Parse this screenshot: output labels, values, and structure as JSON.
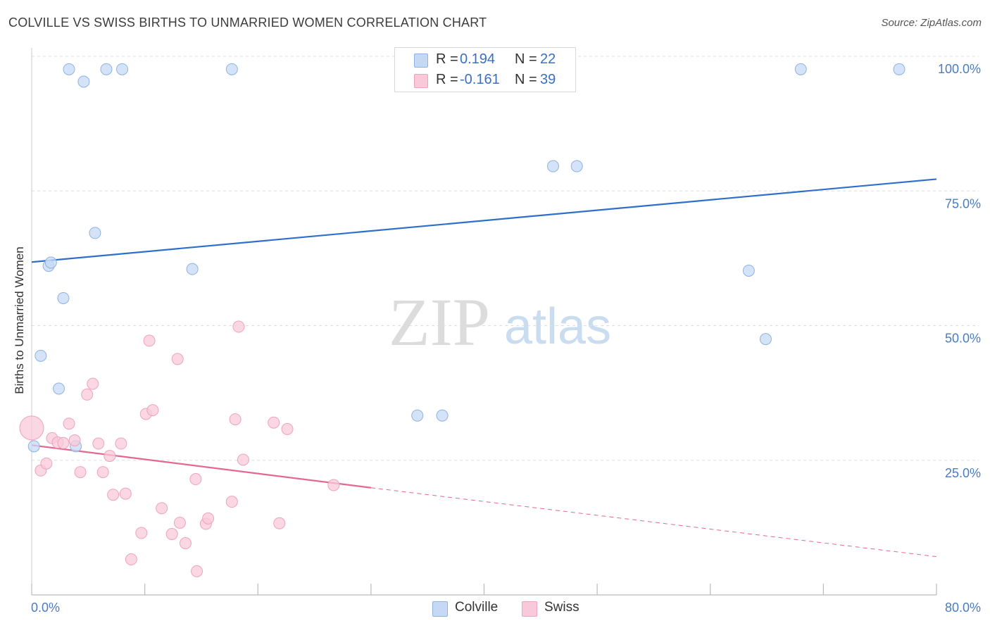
{
  "header": {
    "title": "COLVILLE VS SWISS BIRTHS TO UNMARRIED WOMEN CORRELATION CHART",
    "source": "Source: ZipAtlas.com"
  },
  "legend": {
    "rows": [
      {
        "r_label": "R =",
        "r_value": "0.194",
        "n_label": "N =",
        "n_value": "22"
      },
      {
        "r_label": "R =",
        "r_value": "-0.161",
        "n_label": "N =",
        "n_value": "39"
      }
    ]
  },
  "bottom_legend": {
    "items": [
      {
        "label": "Colville"
      },
      {
        "label": "Swiss"
      }
    ]
  },
  "watermark": {
    "zip": "ZIP",
    "atlas": "atlas"
  },
  "colors": {
    "colville_fill": "#c5d9f4",
    "colville_stroke": "#8fb2e0",
    "colville_line": "#2f6fcc",
    "swiss_fill": "#f8c9d8",
    "swiss_stroke": "#eea3bb",
    "swiss_line": "#e46790",
    "grid": "#dddddd",
    "tick_text": "#4a7cc0"
  },
  "chart_data": {
    "type": "scatter",
    "title": "COLVILLE VS SWISS BIRTHS TO UNMARRIED WOMEN CORRELATION CHART",
    "xlabel": "",
    "ylabel": "Births to Unmarried Women",
    "xlim": [
      0,
      80
    ],
    "ylim": [
      0,
      100
    ],
    "x_tick_labels": [
      "0.0%",
      "80.0%"
    ],
    "y_ticks": [
      25,
      50,
      75,
      100
    ],
    "y_tick_labels": [
      "25.0%",
      "50.0%",
      "75.0%",
      "100.0%"
    ],
    "grid": true,
    "series": [
      {
        "name": "Colville",
        "points": [
          [
            3.3,
            97.6
          ],
          [
            4.6,
            95.3
          ],
          [
            6.6,
            97.6
          ],
          [
            8.0,
            97.6
          ],
          [
            17.7,
            97.6
          ],
          [
            5.6,
            67.2
          ],
          [
            1.5,
            61.1
          ],
          [
            1.7,
            61.7
          ],
          [
            14.2,
            60.5
          ],
          [
            2.8,
            55.1
          ],
          [
            0.8,
            44.4
          ],
          [
            2.4,
            38.3
          ],
          [
            0.2,
            27.6
          ],
          [
            3.9,
            27.6
          ],
          [
            34.1,
            33.3
          ],
          [
            36.3,
            33.3
          ],
          [
            46.1,
            79.6
          ],
          [
            48.2,
            79.6
          ],
          [
            63.4,
            60.2
          ],
          [
            64.9,
            47.5
          ],
          [
            68.0,
            97.6
          ],
          [
            76.7,
            97.6
          ]
        ],
        "trend": {
          "x0": 0,
          "y0": 61.8,
          "x1": 80,
          "y1": 77.2
        }
      },
      {
        "name": "Swiss",
        "points": [
          [
            0.0,
            31.0
          ],
          [
            0.8,
            23.1
          ],
          [
            1.3,
            24.4
          ],
          [
            1.8,
            29.1
          ],
          [
            2.3,
            28.3
          ],
          [
            2.8,
            28.2
          ],
          [
            3.3,
            31.8
          ],
          [
            3.8,
            28.7
          ],
          [
            4.3,
            22.8
          ],
          [
            4.9,
            37.2
          ],
          [
            5.4,
            39.2
          ],
          [
            5.9,
            28.1
          ],
          [
            6.3,
            22.8
          ],
          [
            6.9,
            25.8
          ],
          [
            7.2,
            18.6
          ],
          [
            7.9,
            28.1
          ],
          [
            8.3,
            18.8
          ],
          [
            8.8,
            6.6
          ],
          [
            9.7,
            11.5
          ],
          [
            10.1,
            33.6
          ],
          [
            10.4,
            47.2
          ],
          [
            10.7,
            34.3
          ],
          [
            11.5,
            16.1
          ],
          [
            12.4,
            11.3
          ],
          [
            12.9,
            43.8
          ],
          [
            13.1,
            13.4
          ],
          [
            13.6,
            9.6
          ],
          [
            14.5,
            21.5
          ],
          [
            14.6,
            4.4
          ],
          [
            15.4,
            13.2
          ],
          [
            15.6,
            14.2
          ],
          [
            17.7,
            17.3
          ],
          [
            18.3,
            49.8
          ],
          [
            18.7,
            25.1
          ],
          [
            18.0,
            32.6
          ],
          [
            21.4,
            32.0
          ],
          [
            21.9,
            13.3
          ],
          [
            22.6,
            30.8
          ],
          [
            26.7,
            20.4
          ]
        ],
        "trend": {
          "x0": 0,
          "y0": 27.8,
          "x1": 30,
          "y1": 19.9,
          "dashed_to": {
            "x": 80,
            "y": 7.1
          }
        }
      }
    ]
  }
}
